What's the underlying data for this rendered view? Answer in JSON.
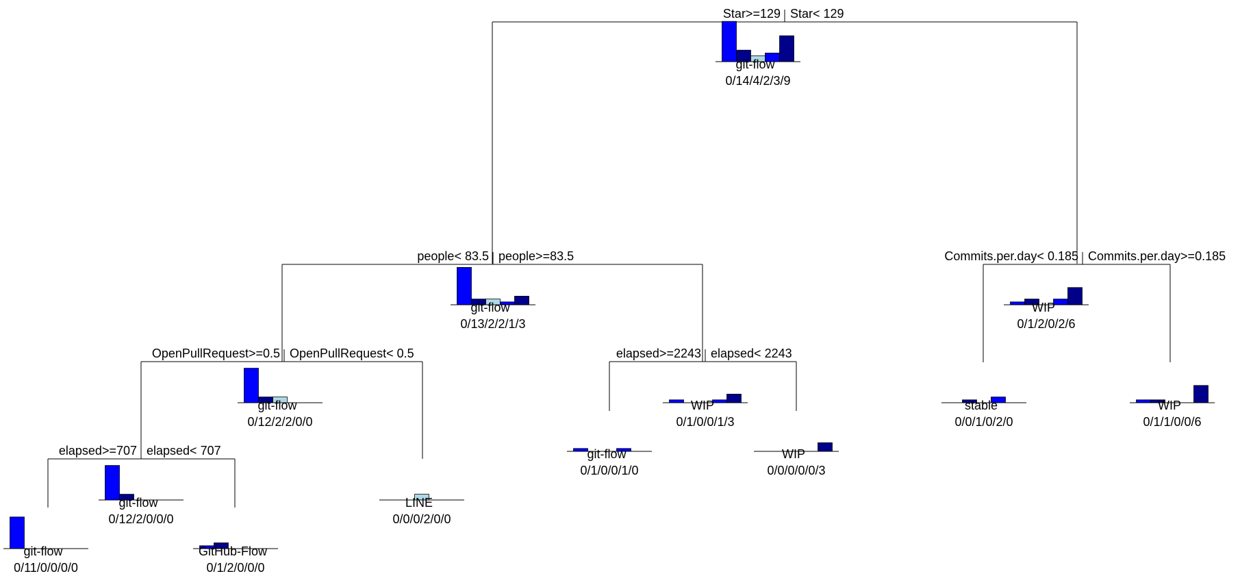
{
  "palette": [
    "#0000ff",
    "#00008b",
    "#add8e6",
    "#0000ff",
    "#00008b"
  ],
  "nodes": [
    {
      "label": "git-flow",
      "counts": "0/14/4/2/3/9",
      "dist": [
        14,
        4,
        2,
        3,
        9
      ]
    },
    {
      "label": "git-flow",
      "counts": "0/13/2/2/1/3",
      "dist": [
        13,
        2,
        2,
        1,
        3
      ]
    },
    {
      "label": "WIP",
      "counts": "0/1/2/0/2/6",
      "dist": [
        1,
        2,
        0,
        2,
        6
      ]
    },
    {
      "label": "git-flow",
      "counts": "0/12/2/2/0/0",
      "dist": [
        12,
        2,
        2,
        0,
        0
      ]
    },
    {
      "label": "WIP",
      "counts": "0/1/0/0/1/3",
      "dist": [
        1,
        0,
        0,
        1,
        3
      ]
    },
    {
      "label": "stable",
      "counts": "0/0/1/0/2/0",
      "dist": [
        0,
        1,
        0,
        2,
        0
      ]
    },
    {
      "label": "WIP",
      "counts": "0/1/1/0/0/6",
      "dist": [
        1,
        1,
        0,
        0,
        6
      ]
    },
    {
      "label": "git-flow",
      "counts": "0/12/2/0/0/0",
      "dist": [
        12,
        2,
        0,
        0,
        0
      ]
    },
    {
      "label": "LINE",
      "counts": "0/0/0/2/0/0",
      "dist": [
        0,
        0,
        2,
        0,
        0
      ]
    },
    {
      "label": "git-flow",
      "counts": "0/1/0/0/1/0",
      "dist": [
        1,
        0,
        0,
        1,
        0
      ]
    },
    {
      "label": "WIP",
      "counts": "0/0/0/0/0/3",
      "dist": [
        0,
        0,
        0,
        0,
        3
      ]
    },
    {
      "label": "git-flow",
      "counts": "0/11/0/0/0/0",
      "dist": [
        11,
        0,
        0,
        0,
        0
      ]
    },
    {
      "label": "GitHub-Flow",
      "counts": "0/1/2/0/0/0",
      "dist": [
        1,
        2,
        0,
        0,
        0
      ]
    }
  ],
  "splits": [
    {
      "left": "Star>=129",
      "right": "Star< 129"
    },
    {
      "left": "people< 83.5",
      "right": "people>=83.5"
    },
    {
      "left": "Commits.per.day< 0.185",
      "right": "Commits.per.day>=0.185"
    },
    {
      "left": "OpenPullRequest>=0.5",
      "right": "OpenPullRequest< 0.5"
    },
    {
      "left": "elapsed>=2243",
      "right": "elapsed< 2243"
    },
    {
      "left": "elapsed>=707",
      "right": "elapsed< 707"
    }
  ]
}
